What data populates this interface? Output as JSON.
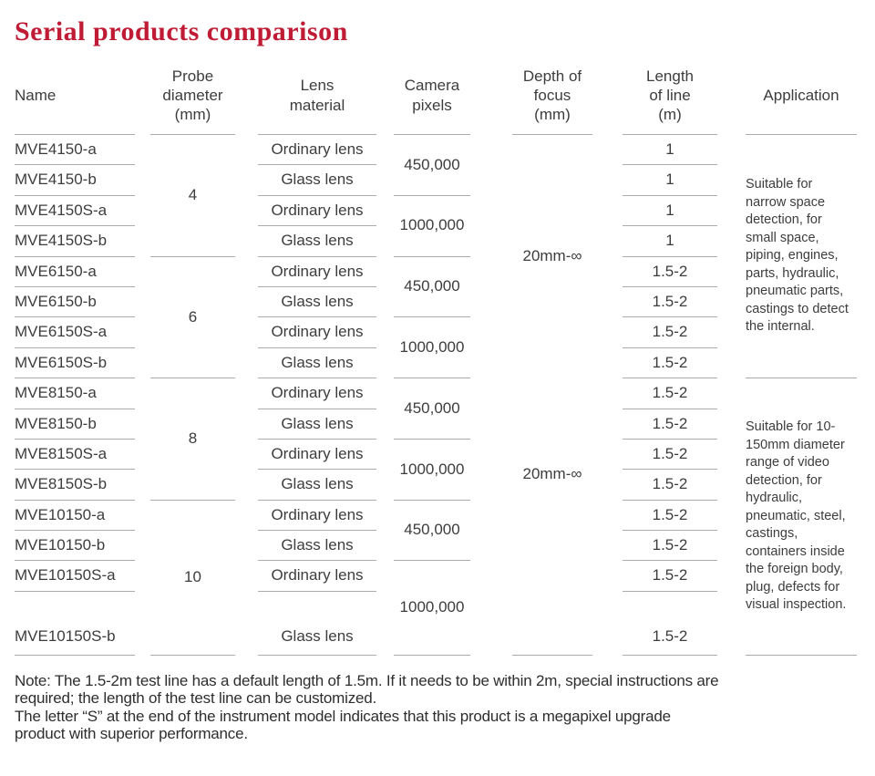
{
  "title": "Serial products comparison",
  "colors": {
    "title_red": "#c01b35",
    "body_text": "#3d3d3d",
    "rule_line": "#ababab"
  },
  "table": {
    "headers": {
      "name": "Name",
      "probe_diameter": [
        "Probe",
        "diameter",
        "(mm)"
      ],
      "lens_material": [
        "Lens",
        "material"
      ],
      "camera_pixels": [
        "Camera",
        "pixels"
      ],
      "depth_of_focus": [
        "Depth of",
        "focus",
        "(mm)"
      ],
      "length_of_line": [
        "Length",
        "of line",
        "(m)"
      ],
      "application": "Application"
    },
    "rows": [
      {
        "name": "MVE4150-a",
        "lens": "Ordinary lens",
        "length": "1"
      },
      {
        "name": "MVE4150-b",
        "lens": "Glass lens",
        "length": "1"
      },
      {
        "name": "MVE4150S-a",
        "lens": "Ordinary lens",
        "length": "1"
      },
      {
        "name": "MVE4150S-b",
        "lens": "Glass lens",
        "length": "1"
      },
      {
        "name": "MVE6150-a",
        "lens": "Ordinary lens",
        "length": "1.5-2"
      },
      {
        "name": "MVE6150-b",
        "lens": "Glass lens",
        "length": "1.5-2"
      },
      {
        "name": "MVE6150S-a",
        "lens": "Ordinary lens",
        "length": "1.5-2"
      },
      {
        "name": "MVE6150S-b",
        "lens": "Glass lens",
        "length": "1.5-2"
      },
      {
        "name": "MVE8150-a",
        "lens": "Ordinary lens",
        "length": "1.5-2"
      },
      {
        "name": "MVE8150-b",
        "lens": "Glass lens",
        "length": "1.5-2"
      },
      {
        "name": "MVE8150S-a",
        "lens": "Ordinary lens",
        "length": "1.5-2"
      },
      {
        "name": "MVE8150S-b",
        "lens": "Glass lens",
        "length": "1.5-2"
      },
      {
        "name": "MVE10150-a",
        "lens": "Ordinary lens",
        "length": "1.5-2"
      },
      {
        "name": "MVE10150-b",
        "lens": "Glass lens",
        "length": "1.5-2"
      },
      {
        "name": "MVE10150S-a",
        "lens": "Ordinary lens",
        "length": "1.5-2"
      },
      {
        "name": "MVE10150S-b",
        "lens": "Glass lens",
        "length": "1.5-2"
      }
    ],
    "diameter_groups": [
      "4",
      "6",
      "8",
      "10"
    ],
    "pixel_groups": [
      "450,000",
      "1000,000",
      "450,000",
      "1000,000",
      "450,000",
      "1000,000",
      "450,000",
      "1000,000"
    ],
    "depth_groups": [
      "20mm-∞",
      "20mm-∞"
    ],
    "applications": [
      "Suitable for narrow space detection, for small space, piping, engines, parts, hydraulic, pneumatic parts, castings to detect the internal.",
      "Suitable for 10-150mm diameter range of video detection, for hydraulic, pneumatic, steel, castings, containers inside the foreign body, plug, defects for visual inspection."
    ]
  },
  "note_lines": [
    "Note: The 1.5-2m test line has a default length of 1.5m. If it needs to be within 2m, special instructions are",
    "required; the length of the test line can be customized.",
    "The letter “S” at the end of the instrument model indicates that this product is a megapixel upgrade",
    "product with superior performance."
  ]
}
